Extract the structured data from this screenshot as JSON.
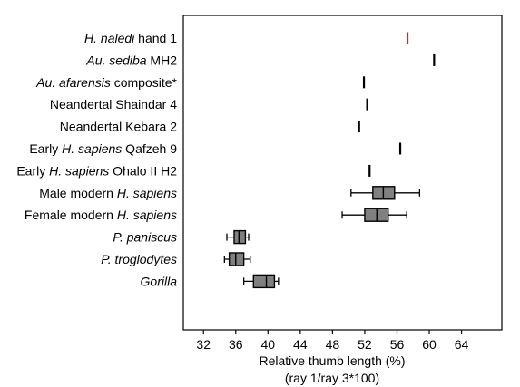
{
  "chart_data": {
    "type": "box",
    "xlabel": [
      "Relative thumb length (%)",
      "(ray 1/ray 3*100)"
    ],
    "xlim": [
      29.5,
      69
    ],
    "xticks": [
      32,
      36,
      40,
      44,
      48,
      52,
      56,
      60,
      64
    ],
    "highlight_color": "#e8191e",
    "box_fill_color": "#808080",
    "series": [
      {
        "label": [
          {
            "t": "H. naledi",
            "i": true
          },
          {
            "t": " hand 1",
            "i": false
          }
        ],
        "highlight": true,
        "point": 57.3
      },
      {
        "label": [
          {
            "t": "Au. sediba",
            "i": true
          },
          {
            "t": " MH2",
            "i": false
          }
        ],
        "point": 60.6
      },
      {
        "label": [
          {
            "t": "Au. afarensis",
            "i": true
          },
          {
            "t": " composite*",
            "i": false
          }
        ],
        "point": 51.9
      },
      {
        "label": [
          {
            "t": "Neandertal Shaindar 4",
            "i": false
          }
        ],
        "point": 52.3
      },
      {
        "label": [
          {
            "t": "Neandertal Kebara 2",
            "i": false
          }
        ],
        "point": 51.3
      },
      {
        "label": [
          {
            "t": "Early ",
            "i": false
          },
          {
            "t": "H. sapiens",
            "i": true
          },
          {
            "t": " Qafzeh 9",
            "i": false
          }
        ],
        "point": 56.4
      },
      {
        "label": [
          {
            "t": "Early ",
            "i": false
          },
          {
            "t": "H. sapiens",
            "i": true
          },
          {
            "t": " Ohalo II H2",
            "i": false
          }
        ],
        "point": 52.6
      },
      {
        "label": [
          {
            "t": "Male modern ",
            "i": false
          },
          {
            "t": "H. sapiens",
            "i": true
          }
        ],
        "box": {
          "min": 50.3,
          "q1": 53.0,
          "median": 54.3,
          "q3": 55.7,
          "max": 58.8
        }
      },
      {
        "label": [
          {
            "t": "Female modern ",
            "i": false
          },
          {
            "t": "H. sapiens",
            "i": true
          }
        ],
        "box": {
          "min": 49.2,
          "q1": 52.0,
          "median": 53.5,
          "q3": 54.9,
          "max": 57.2
        }
      },
      {
        "label": [
          {
            "t": "P. paniscus",
            "i": true
          }
        ],
        "box": {
          "min": 34.9,
          "q1": 35.8,
          "median": 36.4,
          "q3": 37.2,
          "max": 37.6
        }
      },
      {
        "label": [
          {
            "t": "P. troglodytes",
            "i": true
          }
        ],
        "box": {
          "min": 34.6,
          "q1": 35.2,
          "median": 36.0,
          "q3": 37.0,
          "max": 37.8
        }
      },
      {
        "label": [
          {
            "t": "Gorilla",
            "i": true
          }
        ],
        "box": {
          "min": 37.0,
          "q1": 38.2,
          "median": 39.8,
          "q3": 40.8,
          "max": 41.3
        }
      }
    ]
  }
}
